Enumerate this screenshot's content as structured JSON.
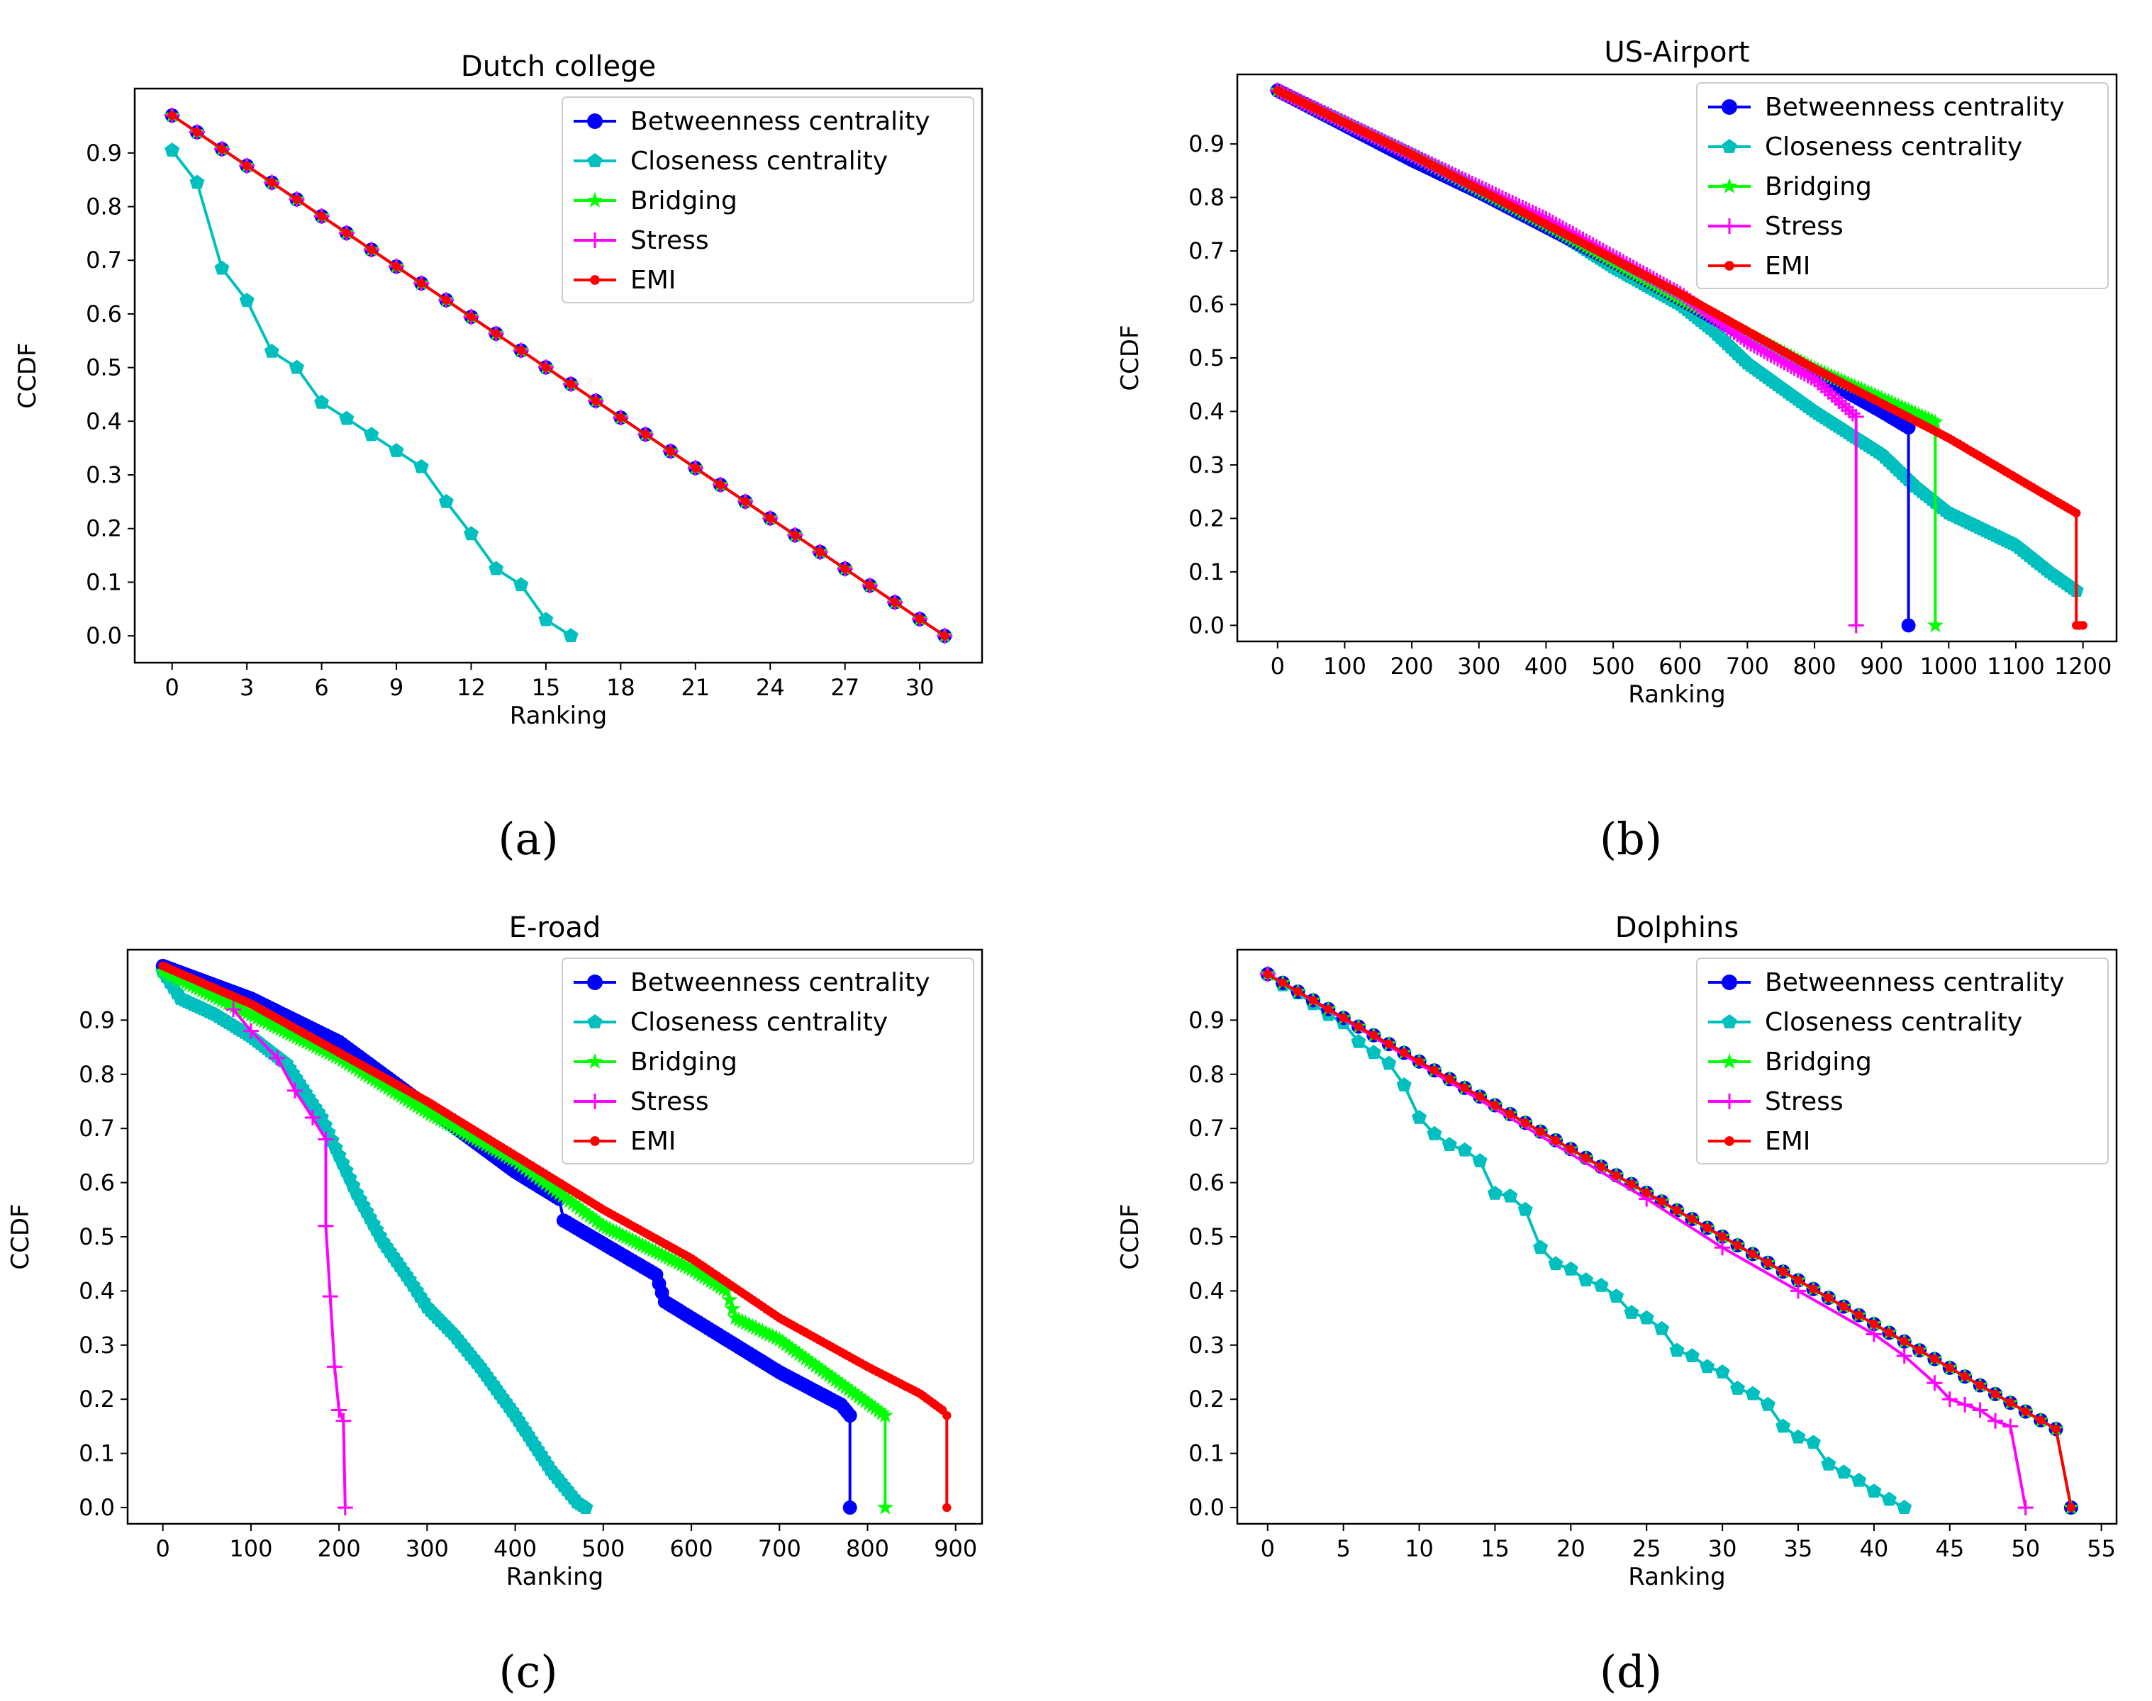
{
  "figure": {
    "captions": [
      "(a)",
      "(b)",
      "(c)",
      "(d)"
    ]
  },
  "series_styles": [
    {
      "name": "Betweenness centrality",
      "color": "#0000ff",
      "marker": "circle"
    },
    {
      "name": "Closeness centrality",
      "color": "#00bfbf",
      "marker": "pentagon"
    },
    {
      "name": "Bridging",
      "color": "#00ff00",
      "marker": "star"
    },
    {
      "name": "Stress",
      "color": "#ff00ff",
      "marker": "plus"
    },
    {
      "name": "EMI",
      "color": "#ff0000",
      "marker": "dot"
    }
  ],
  "chart_data": [
    {
      "type": "line",
      "title": "Dutch college",
      "xlabel": "Ranking",
      "ylabel": "CCDF",
      "xlim": [
        -1.5,
        32.5
      ],
      "ylim": [
        -0.05,
        1.02
      ],
      "xticks": [
        0,
        3,
        6,
        9,
        12,
        15,
        18,
        21,
        24,
        27,
        30
      ],
      "yticks": [
        0.0,
        0.1,
        0.2,
        0.3,
        0.4,
        0.5,
        0.6,
        0.7,
        0.8,
        0.9
      ],
      "legend": "top-right",
      "series": [
        {
          "name": "Betweenness centrality",
          "x_range": [
            0,
            31
          ],
          "y_range": [
            0.97,
            0.0
          ]
        },
        {
          "name": "Closeness centrality",
          "x": [
            0,
            1,
            2,
            3,
            4,
            5,
            6,
            7,
            8,
            9,
            10,
            11,
            12,
            13,
            14,
            15,
            16
          ],
          "y": [
            0.905,
            0.845,
            0.685,
            0.625,
            0.53,
            0.5,
            0.435,
            0.405,
            0.375,
            0.345,
            0.315,
            0.25,
            0.19,
            0.125,
            0.095,
            0.03,
            0.0
          ]
        },
        {
          "name": "Bridging",
          "x_range": [
            0,
            31
          ],
          "y_range": [
            0.97,
            0.0
          ]
        },
        {
          "name": "Stress",
          "x_range": [
            0,
            31
          ],
          "y_range": [
            0.97,
            0.0
          ]
        },
        {
          "name": "EMI",
          "x_range": [
            0,
            31
          ],
          "y_range": [
            0.97,
            0.0
          ]
        }
      ]
    },
    {
      "type": "line",
      "title": "US-Airport",
      "xlabel": "Ranking",
      "ylabel": "CCDF",
      "xlim": [
        -60,
        1250
      ],
      "ylim": [
        -0.03,
        1.03
      ],
      "xticks": [
        0,
        100,
        200,
        300,
        400,
        500,
        600,
        700,
        800,
        900,
        1000,
        1100,
        1200
      ],
      "yticks": [
        0.0,
        0.1,
        0.2,
        0.3,
        0.4,
        0.5,
        0.6,
        0.7,
        0.8,
        0.9
      ],
      "legend": "top-right",
      "series": [
        {
          "name": "Betweenness centrality",
          "x": [
            0,
            200,
            300,
            500,
            600,
            700,
            800,
            900,
            940,
            940
          ],
          "y": [
            1.0,
            0.87,
            0.81,
            0.68,
            0.61,
            0.54,
            0.47,
            0.4,
            0.37,
            0.0
          ]
        },
        {
          "name": "Closeness centrality",
          "x": [
            0,
            200,
            400,
            500,
            600,
            650,
            700,
            800,
            900,
            950,
            1000,
            1050,
            1100,
            1150,
            1190
          ],
          "y": [
            1.0,
            0.88,
            0.75,
            0.67,
            0.6,
            0.55,
            0.49,
            0.4,
            0.32,
            0.26,
            0.21,
            0.18,
            0.15,
            0.1,
            0.065
          ]
        },
        {
          "name": "Bridging",
          "x": [
            0,
            200,
            400,
            600,
            800,
            980,
            980
          ],
          "y": [
            1.0,
            0.88,
            0.75,
            0.61,
            0.48,
            0.38,
            0.0
          ]
        },
        {
          "name": "Stress",
          "x": [
            0,
            200,
            400,
            600,
            700,
            800,
            862,
            862
          ],
          "y": [
            1.0,
            0.88,
            0.76,
            0.62,
            0.53,
            0.46,
            0.39,
            0.0
          ]
        },
        {
          "name": "EMI",
          "x": [
            0,
            200,
            400,
            600,
            800,
            1000,
            1190,
            1190,
            1200
          ],
          "y": [
            1.0,
            0.88,
            0.75,
            0.62,
            0.48,
            0.35,
            0.21,
            0.0,
            0.0
          ]
        }
      ]
    },
    {
      "type": "line",
      "title": "E-road",
      "xlabel": "Ranking",
      "ylabel": "CCDF",
      "xlim": [
        -40,
        930
      ],
      "ylim": [
        -0.03,
        1.03
      ],
      "xticks": [
        0,
        100,
        200,
        300,
        400,
        500,
        600,
        700,
        800,
        900
      ],
      "yticks": [
        0.0,
        0.1,
        0.2,
        0.3,
        0.4,
        0.5,
        0.6,
        0.7,
        0.8,
        0.9
      ],
      "legend": "top-right",
      "series": [
        {
          "name": "Betweenness centrality",
          "x": [
            0,
            100,
            200,
            300,
            400,
            450,
            455,
            560,
            570,
            650,
            700,
            770,
            780,
            780
          ],
          "y": [
            1.0,
            0.94,
            0.86,
            0.74,
            0.62,
            0.57,
            0.53,
            0.43,
            0.38,
            0.3,
            0.25,
            0.19,
            0.17,
            0.0
          ]
        },
        {
          "name": "Closeness centrality",
          "x": [
            0,
            20,
            60,
            100,
            140,
            180,
            200,
            220,
            250,
            280,
            300,
            330,
            360,
            400,
            440,
            470,
            480
          ],
          "y": [
            0.99,
            0.94,
            0.91,
            0.87,
            0.82,
            0.72,
            0.65,
            0.58,
            0.49,
            0.42,
            0.37,
            0.32,
            0.26,
            0.17,
            0.07,
            0.01,
            0.0
          ]
        },
        {
          "name": "Bridging",
          "x": [
            0,
            100,
            200,
            300,
            400,
            450,
            500,
            600,
            640,
            650,
            700,
            820,
            820
          ],
          "y": [
            0.99,
            0.91,
            0.83,
            0.73,
            0.64,
            0.58,
            0.52,
            0.44,
            0.4,
            0.35,
            0.31,
            0.17,
            0.0
          ]
        },
        {
          "name": "Stress",
          "x": [
            80,
            100,
            130,
            150,
            170,
            185,
            185,
            190,
            195,
            200,
            205,
            207
          ],
          "y": [
            0.92,
            0.88,
            0.83,
            0.77,
            0.72,
            0.68,
            0.52,
            0.39,
            0.26,
            0.18,
            0.16,
            0.0
          ]
        },
        {
          "name": "EMI",
          "x": [
            0,
            100,
            200,
            300,
            400,
            500,
            600,
            700,
            800,
            860,
            885,
            890,
            890
          ],
          "y": [
            1.0,
            0.93,
            0.84,
            0.75,
            0.65,
            0.55,
            0.46,
            0.35,
            0.26,
            0.21,
            0.18,
            0.17,
            0.0
          ]
        }
      ]
    },
    {
      "type": "line",
      "title": "Dolphins",
      "xlabel": "Ranking",
      "ylabel": "CCDF",
      "xlim": [
        -2,
        56
      ],
      "ylim": [
        -0.03,
        1.03
      ],
      "xticks": [
        0,
        5,
        10,
        15,
        20,
        25,
        30,
        35,
        40,
        45,
        50,
        55
      ],
      "yticks": [
        0.0,
        0.1,
        0.2,
        0.3,
        0.4,
        0.5,
        0.6,
        0.7,
        0.8,
        0.9
      ],
      "legend": "top-right",
      "series": [
        {
          "name": "Betweenness centrality",
          "x_range": [
            0,
            52
          ],
          "y_range": [
            0.985,
            0.145
          ],
          "extra": [
            [
              53,
              0.0
            ]
          ]
        },
        {
          "name": "Closeness centrality",
          "x": [
            0,
            1,
            2,
            3,
            4,
            5,
            6,
            7,
            8,
            9,
            10,
            11,
            12,
            13,
            14,
            15,
            16,
            17,
            18,
            19,
            20,
            21,
            22,
            23,
            24,
            25,
            26,
            27,
            28,
            29,
            30,
            31,
            32,
            33,
            34,
            35,
            36,
            37,
            38,
            39,
            40,
            41,
            42
          ],
          "y": [
            0.985,
            0.965,
            0.95,
            0.93,
            0.91,
            0.895,
            0.86,
            0.84,
            0.82,
            0.78,
            0.72,
            0.69,
            0.67,
            0.66,
            0.64,
            0.58,
            0.575,
            0.55,
            0.48,
            0.45,
            0.44,
            0.42,
            0.41,
            0.39,
            0.36,
            0.35,
            0.33,
            0.29,
            0.28,
            0.26,
            0.25,
            0.22,
            0.21,
            0.19,
            0.15,
            0.13,
            0.12,
            0.08,
            0.065,
            0.05,
            0.03,
            0.015,
            0.0
          ]
        },
        {
          "name": "Bridging",
          "x_range": [
            0,
            52
          ],
          "y_range": [
            0.985,
            0.145
          ],
          "extra": [
            [
              53,
              0.0
            ]
          ]
        },
        {
          "name": "Stress",
          "x": [
            0,
            25,
            30,
            35,
            40,
            42,
            44,
            45,
            46,
            47,
            48,
            49,
            50
          ],
          "y": [
            0.985,
            0.57,
            0.48,
            0.4,
            0.32,
            0.28,
            0.23,
            0.2,
            0.19,
            0.18,
            0.16,
            0.15,
            0.0
          ]
        },
        {
          "name": "EMI",
          "x_range": [
            0,
            52
          ],
          "y_range": [
            0.985,
            0.145
          ],
          "extra": [
            [
              53,
              0.0
            ]
          ]
        }
      ]
    }
  ]
}
